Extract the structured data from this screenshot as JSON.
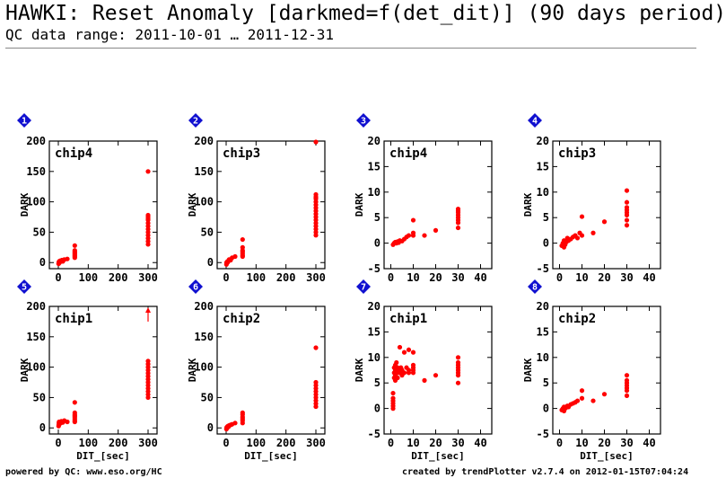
{
  "header": {
    "title": "HAWKI: Reset Anomaly [darkmed=f(det_dit)] (90 days period)",
    "subtitle": "QC data range: 2011-10-01 … 2011-12-31"
  },
  "footer": {
    "left": "powered by QC: www.eso.org/HC",
    "right": "created by trendPlotter v2.7.4 on 2012-01-15T07:04:24"
  },
  "colors": {
    "points": "#ff0000",
    "badge": "#1010d0"
  },
  "chart_data": [
    {
      "type": "scatter",
      "panel_number": "1",
      "label": "chip4",
      "xlabel": "",
      "ylabel": "DARK",
      "xlim": [
        -30,
        330
      ],
      "ylim": [
        -10,
        200
      ],
      "xticks": [
        "0",
        "100",
        "200",
        "300"
      ],
      "yticks": [
        "0",
        "50",
        "100",
        "150",
        "200"
      ],
      "x": [
        1,
        1.5,
        2,
        2,
        3,
        4,
        5,
        6,
        8,
        10,
        12,
        15,
        20,
        30,
        55,
        55,
        55,
        55,
        55,
        55,
        55,
        55,
        300,
        300,
        300,
        300,
        300,
        300,
        300,
        300,
        300,
        300,
        300,
        300,
        300
      ],
      "y": [
        -2,
        0,
        1,
        -1,
        2,
        0,
        1,
        3,
        2,
        3,
        4,
        2,
        5,
        6,
        8,
        10,
        12,
        14,
        16,
        18,
        20,
        28,
        30,
        35,
        40,
        45,
        50,
        55,
        60,
        65,
        70,
        72,
        75,
        78,
        150
      ],
      "overflow_marker": false
    },
    {
      "type": "scatter",
      "panel_number": "2",
      "label": "chip3",
      "xlabel": "",
      "ylabel": "DARK",
      "xlim": [
        -30,
        330
      ],
      "ylim": [
        -10,
        200
      ],
      "xticks": [
        "0",
        "100",
        "200",
        "300"
      ],
      "yticks": [
        "0",
        "50",
        "100",
        "150",
        "200"
      ],
      "x": [
        1,
        1.5,
        2,
        3,
        4,
        5,
        6,
        8,
        10,
        15,
        20,
        30,
        55,
        55,
        55,
        55,
        55,
        55,
        55,
        300,
        300,
        300,
        300,
        300,
        300,
        300,
        300,
        300,
        300,
        300,
        300,
        300,
        300,
        300,
        300
      ],
      "y": [
        -3,
        0,
        -1,
        1,
        0,
        2,
        1,
        3,
        5,
        4,
        8,
        10,
        10,
        12,
        15,
        18,
        20,
        25,
        38,
        45,
        50,
        55,
        60,
        65,
        70,
        75,
        80,
        85,
        90,
        95,
        100,
        105,
        108,
        112,
        200
      ],
      "overflow_marker": false
    },
    {
      "type": "scatter",
      "panel_number": "3",
      "label": "chip4",
      "xlabel": "",
      "ylabel": "DARK",
      "xlim": [
        -3,
        45
      ],
      "ylim": [
        -5,
        20
      ],
      "xticks": [
        "0",
        "10",
        "20",
        "30",
        "40"
      ],
      "yticks": [
        "-5",
        "0",
        "5",
        "10",
        "15",
        "20"
      ],
      "x": [
        1,
        1.5,
        2,
        2.5,
        3,
        3.5,
        4,
        5,
        6,
        7,
        8,
        10,
        10,
        10,
        15,
        20,
        30,
        30,
        30,
        30,
        30,
        30,
        30,
        30
      ],
      "y": [
        -0.3,
        0,
        0.2,
        0,
        0.3,
        0.1,
        0.5,
        0.4,
        0.8,
        1.2,
        1.5,
        1.5,
        2,
        4.5,
        1.5,
        2.5,
        3,
        4,
        4.5,
        5,
        5.5,
        6,
        6.3,
        6.7
      ],
      "overflow_marker": false
    },
    {
      "type": "scatter",
      "panel_number": "4",
      "label": "chip3",
      "xlabel": "",
      "ylabel": "DARK",
      "xlim": [
        -3,
        45
      ],
      "ylim": [
        -5,
        20
      ],
      "xticks": [
        "0",
        "10",
        "20",
        "30",
        "40"
      ],
      "yticks": [
        "-5",
        "0",
        "5",
        "10",
        "15",
        "20"
      ],
      "x": [
        1,
        1.5,
        2,
        2,
        2.5,
        3,
        3.5,
        4,
        5,
        6,
        7,
        8,
        9,
        10,
        10,
        15,
        20,
        30,
        30,
        30,
        30,
        30,
        30,
        30,
        30
      ],
      "y": [
        -0.5,
        0,
        -0.8,
        0.5,
        -0.3,
        0.2,
        1,
        0.5,
        0.8,
        1.2,
        1.5,
        1,
        2,
        1.5,
        5.2,
        2,
        4.2,
        3.5,
        4.5,
        5.5,
        6,
        6.5,
        7,
        8,
        10.3
      ],
      "overflow_marker": false
    },
    {
      "type": "scatter",
      "panel_number": "5",
      "label": "chip1",
      "xlabel": "DIT_[sec]",
      "ylabel": "DARK",
      "xlim": [
        -30,
        330
      ],
      "ylim": [
        -10,
        200
      ],
      "xticks": [
        "0",
        "100",
        "200",
        "300"
      ],
      "yticks": [
        "0",
        "50",
        "100",
        "150",
        "200"
      ],
      "x": [
        1,
        1.5,
        2,
        2.5,
        3,
        4,
        5,
        6,
        8,
        10,
        15,
        20,
        30,
        55,
        55,
        55,
        55,
        55,
        55,
        55,
        55,
        300,
        300,
        300,
        300,
        300,
        300,
        300,
        300,
        300,
        300,
        300,
        300,
        300
      ],
      "y": [
        3,
        5,
        8,
        10,
        6,
        9,
        7,
        10,
        8,
        11,
        9,
        12,
        10,
        10,
        12,
        15,
        18,
        20,
        22,
        25,
        42,
        50,
        55,
        60,
        65,
        70,
        75,
        80,
        85,
        90,
        95,
        100,
        105,
        110
      ],
      "overflow_marker": true
    },
    {
      "type": "scatter",
      "panel_number": "6",
      "label": "chip2",
      "xlabel": "DIT_[sec]",
      "ylabel": "DARK",
      "xlim": [
        -30,
        330
      ],
      "ylim": [
        -10,
        200
      ],
      "xticks": [
        "0",
        "100",
        "200",
        "300"
      ],
      "yticks": [
        "0",
        "50",
        "100",
        "150",
        "200"
      ],
      "x": [
        1,
        1.5,
        2,
        3,
        4,
        5,
        6,
        8,
        10,
        15,
        20,
        30,
        55,
        55,
        55,
        55,
        55,
        55,
        300,
        300,
        300,
        300,
        300,
        300,
        300,
        300,
        300,
        300
      ],
      "y": [
        -2,
        0,
        1,
        0,
        2,
        1,
        3,
        2,
        4,
        5,
        6,
        8,
        8,
        12,
        15,
        18,
        22,
        25,
        35,
        40,
        45,
        50,
        55,
        60,
        65,
        70,
        75,
        132
      ],
      "overflow_marker": false
    },
    {
      "type": "scatter",
      "panel_number": "7",
      "label": "chip1",
      "xlabel": "DIT_[sec]",
      "ylabel": "DARK",
      "xlim": [
        -3,
        45
      ],
      "ylim": [
        -5,
        20
      ],
      "xticks": [
        "0",
        "10",
        "20",
        "30",
        "40"
      ],
      "yticks": [
        "-5",
        "0",
        "5",
        "10",
        "15",
        "20"
      ],
      "x": [
        1,
        1,
        1,
        1,
        1,
        1,
        1.5,
        1.5,
        1.5,
        2,
        2,
        2,
        2,
        2.5,
        2.5,
        3,
        3,
        3,
        3.5,
        4,
        4,
        4.5,
        5,
        5,
        6,
        6,
        7,
        8,
        8,
        8,
        10,
        10,
        10,
        10,
        10,
        15,
        20,
        30,
        30,
        30,
        30,
        30,
        30,
        30,
        30
      ],
      "y": [
        0,
        0.5,
        1,
        1.5,
        2,
        3,
        6,
        7,
        8,
        5.5,
        6.5,
        7.5,
        8.5,
        7,
        9,
        6,
        7,
        8,
        7.5,
        7,
        12,
        8,
        6.5,
        7.5,
        7,
        11,
        8,
        7,
        7.5,
        11.5,
        7,
        7.5,
        8,
        8.5,
        11,
        5.5,
        6.5,
        5,
        6.5,
        7,
        7.5,
        8,
        8.5,
        9,
        10
      ],
      "overflow_marker": false
    },
    {
      "type": "scatter",
      "panel_number": "8",
      "label": "chip2",
      "xlabel": "DIT_[sec]",
      "ylabel": "DARK",
      "xlim": [
        -3,
        45
      ],
      "ylim": [
        -5,
        20
      ],
      "xticks": [
        "0",
        "10",
        "20",
        "30",
        "40"
      ],
      "yticks": [
        "-5",
        "0",
        "5",
        "10",
        "15",
        "20"
      ],
      "x": [
        1,
        1.5,
        2,
        2,
        2.5,
        3,
        3.5,
        4,
        5,
        6,
        7,
        8,
        10,
        10,
        15,
        20,
        30,
        30,
        30,
        30,
        30,
        30,
        30
      ],
      "y": [
        -0.3,
        0,
        -0.5,
        0.3,
        0,
        0.2,
        0.5,
        0.3,
        0.8,
        1,
        1.2,
        1.5,
        2,
        3.5,
        1.5,
        2.8,
        2.5,
        3.5,
        4,
        4.5,
        5,
        5.5,
        6.5
      ],
      "overflow_marker": false
    }
  ]
}
